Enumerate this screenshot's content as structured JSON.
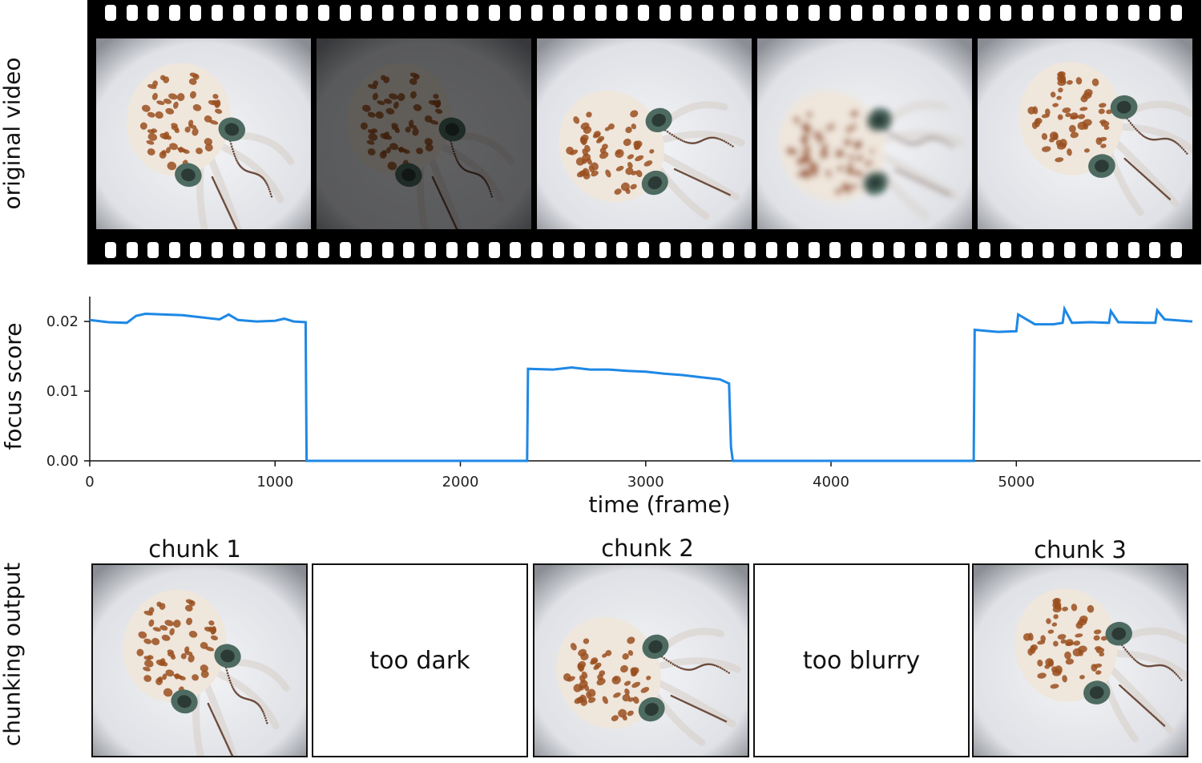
{
  "labels": {
    "row1": "original video",
    "row2": "focus score",
    "row3": "chunking output"
  },
  "chart_data": {
    "type": "line",
    "xlabel": "time (frame)",
    "ylabel": "focus score",
    "xlim": [
      0,
      5950
    ],
    "ylim": [
      0.0,
      0.023
    ],
    "xticks": [
      0,
      1000,
      2000,
      3000,
      4000,
      5000
    ],
    "yticks": [
      "0.00",
      "0.01",
      "0.02"
    ],
    "grid": false,
    "series": [
      {
        "color": "#1e88e5",
        "x": [
          0,
          100,
          200,
          250,
          300,
          400,
          500,
          600,
          700,
          750,
          800,
          900,
          1000,
          1050,
          1100,
          1165,
          1170,
          2360,
          2365,
          2500,
          2600,
          2700,
          2800,
          2900,
          3000,
          3100,
          3200,
          3300,
          3400,
          3450,
          3460,
          3470,
          4770,
          4775,
          4900,
          5000,
          5010,
          5100,
          5200,
          5250,
          5260,
          5300,
          5400,
          5500,
          5510,
          5550,
          5700,
          5750,
          5760,
          5800,
          5950
        ],
        "y": [
          0.0202,
          0.0199,
          0.0198,
          0.0208,
          0.0211,
          0.021,
          0.0209,
          0.0206,
          0.0203,
          0.021,
          0.0202,
          0.02,
          0.0201,
          0.0204,
          0.02,
          0.0199,
          0.0,
          0.0,
          0.0132,
          0.0131,
          0.0134,
          0.0131,
          0.0131,
          0.0129,
          0.0128,
          0.0125,
          0.0123,
          0.012,
          0.0117,
          0.0111,
          0.002,
          0.0,
          0.0,
          0.0188,
          0.0185,
          0.0186,
          0.021,
          0.0196,
          0.0196,
          0.0198,
          0.0218,
          0.0198,
          0.0199,
          0.0198,
          0.0215,
          0.0199,
          0.0198,
          0.0198,
          0.0216,
          0.0203,
          0.02
        ]
      }
    ]
  },
  "chunks": [
    {
      "title": "chunk 1",
      "text": ""
    },
    {
      "title": "",
      "text": "too dark"
    },
    {
      "title": "chunk 2",
      "text": ""
    },
    {
      "title": "",
      "text": "too blurry"
    },
    {
      "title": "chunk 3",
      "text": ""
    }
  ],
  "colors": {
    "line": "#1e88e5",
    "film": "#000000",
    "background": "#ffffff"
  },
  "film_frames": [
    {
      "shade": "normal",
      "pose": "a"
    },
    {
      "shade": "dark",
      "pose": "a"
    },
    {
      "shade": "normal",
      "pose": "b"
    },
    {
      "shade": "blurry",
      "pose": "b"
    },
    {
      "shade": "normal",
      "pose": "c"
    }
  ]
}
